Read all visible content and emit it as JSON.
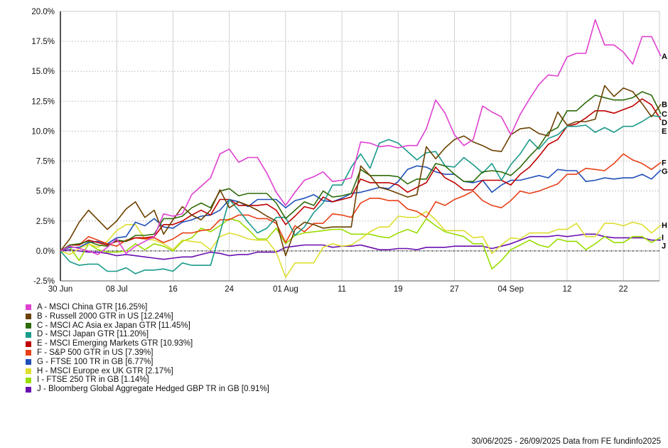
{
  "chart_data": {
    "type": "line",
    "title": "",
    "xlabel": "",
    "ylabel": "",
    "ylim": [
      -2.5,
      20.0
    ],
    "yticks": [
      "20.0%",
      "17.5%",
      "15.0%",
      "12.5%",
      "10.0%",
      "7.5%",
      "5.0%",
      "2.5%",
      "0.0%",
      "-2.5%"
    ],
    "ytick_values": [
      20,
      17.5,
      15,
      12.5,
      10,
      7.5,
      5,
      2.5,
      0,
      -2.5
    ],
    "x_count": 65,
    "xticks": [
      {
        "index": 0,
        "label": "30 Jun"
      },
      {
        "index": 6,
        "label": "08 Jul"
      },
      {
        "index": 12,
        "label": "16"
      },
      {
        "index": 18,
        "label": "24"
      },
      {
        "index": 24,
        "label": "01 Aug"
      },
      {
        "index": 30,
        "label": "11"
      },
      {
        "index": 36,
        "label": "19"
      },
      {
        "index": 42,
        "label": "27"
      },
      {
        "index": 48,
        "label": "04 Sep"
      },
      {
        "index": 54,
        "label": "12"
      },
      {
        "index": 60,
        "label": "22"
      }
    ],
    "grid": true,
    "legend_position": "bottom-left",
    "series": [
      {
        "key": "A",
        "name": "A - MSCI China GTR [16.25%]",
        "color": "#e040d0",
        "values": [
          0,
          0.4,
          0.2,
          0.0,
          -0.3,
          0.3,
          1.0,
          -0.2,
          0.4,
          0.8,
          1.2,
          3.1,
          2.9,
          3.1,
          4.7,
          5.4,
          6.1,
          8.1,
          8.5,
          7.4,
          7.8,
          7.8,
          6.5,
          4.9,
          3.8,
          4.9,
          5.9,
          6.2,
          6.6,
          5.8,
          5.9,
          6.1,
          9.1,
          9.0,
          8.7,
          8.8,
          8.6,
          8.8,
          8.8,
          10.2,
          12.6,
          11.5,
          9.7,
          8.8,
          9.3,
          12.1,
          11.6,
          11.2,
          9.7,
          11.4,
          12.7,
          13.9,
          14.7,
          14.6,
          16.2,
          16.5,
          16.5,
          19.3,
          17.2,
          17.2,
          16.6,
          15.6,
          17.9,
          17.9,
          16.25
        ]
      },
      {
        "key": "B",
        "name": "B - Russell 2000 GTR in US [12.24%]",
        "color": "#6b4000",
        "values": [
          0,
          1.0,
          2.4,
          3.4,
          2.6,
          1.8,
          2.5,
          3.5,
          4.1,
          2.8,
          3.4,
          1.4,
          2.6,
          3.7,
          3.0,
          2.6,
          3.4,
          5.1,
          3.6,
          4.1,
          3.8,
          3.4,
          2.9,
          2.5,
          -0.4,
          1.8,
          2.4,
          2.2,
          1.9,
          2.0,
          2.0,
          2.0,
          7.1,
          6.3,
          5.3,
          5.1,
          4.8,
          4.5,
          4.7,
          8.7,
          7.7,
          8.6,
          9.3,
          9.6,
          9.1,
          8.8,
          8.4,
          8.3,
          9.7,
          10.2,
          10.3,
          9.8,
          9.6,
          11.6,
          10.5,
          10.8,
          10.8,
          11.0,
          13.8,
          12.9,
          13.6,
          13.3,
          12.3,
          11.2,
          12.24
        ]
      },
      {
        "key": "C",
        "name": "C - MSCI AC Asia ex Japan GTR [11.45%]",
        "color": "#2e6b0a",
        "values": [
          0,
          0.5,
          0.6,
          0.8,
          0.5,
          0.4,
          0.9,
          0.8,
          1.3,
          1.3,
          1.4,
          2.7,
          2.7,
          2.9,
          3.6,
          4.0,
          3.6,
          5.0,
          5.2,
          4.6,
          4.8,
          4.8,
          4.8,
          4.0,
          2.7,
          3.4,
          4.1,
          3.8,
          5.0,
          4.5,
          4.6,
          4.8,
          6.8,
          6.3,
          6.3,
          6.3,
          6.2,
          5.6,
          6.0,
          6.0,
          7.3,
          7.1,
          6.4,
          5.8,
          5.8,
          6.6,
          6.7,
          6.6,
          6.3,
          7.0,
          7.9,
          8.7,
          9.9,
          10.3,
          11.7,
          11.7,
          12.4,
          13.0,
          12.8,
          12.6,
          12.6,
          12.8,
          13.3,
          13.0,
          11.45
        ]
      },
      {
        "key": "D",
        "name": "D - MSCI Japan GTR [11.20%]",
        "color": "#1a9a8a",
        "values": [
          0,
          -0.9,
          -1.2,
          -1.1,
          -1.1,
          -1.7,
          -1.7,
          -1.4,
          -1.9,
          -1.6,
          -1.6,
          -1.5,
          -1.7,
          -1.0,
          -1.2,
          -1.2,
          -1.2,
          1.5,
          4.3,
          3.4,
          2.4,
          1.5,
          1.9,
          2.8,
          2.8,
          1.3,
          2.0,
          3.2,
          4.0,
          5.5,
          5.5,
          7.0,
          8.1,
          6.9,
          9.0,
          9.3,
          9.0,
          8.3,
          7.6,
          8.2,
          8.3,
          7.1,
          7.0,
          7.8,
          7.2,
          6.5,
          7.3,
          5.9,
          7.2,
          8.1,
          9.3,
          8.5,
          9.4,
          9.7,
          10.4,
          10.4,
          10.5,
          9.9,
          10.3,
          9.9,
          10.4,
          10.4,
          10.8,
          11.3,
          11.2
        ]
      },
      {
        "key": "E",
        "name": "E - MSCI Emerging Markets GTR [10.93%]",
        "color": "#c00000",
        "values": [
          0,
          0.5,
          0.5,
          0.9,
          0.7,
          0.5,
          0.8,
          0.8,
          1.1,
          1.1,
          1.2,
          2.2,
          2.2,
          2.5,
          3.0,
          3.4,
          3.0,
          4.3,
          4.3,
          3.8,
          3.8,
          3.8,
          3.9,
          3.4,
          2.2,
          2.9,
          3.7,
          3.5,
          4.5,
          4.1,
          4.3,
          4.5,
          6.0,
          5.7,
          5.7,
          5.7,
          5.5,
          4.9,
          5.3,
          5.7,
          7.0,
          6.1,
          5.7,
          5.1,
          5.1,
          5.9,
          5.9,
          5.9,
          5.5,
          6.4,
          7.0,
          7.9,
          8.9,
          9.3,
          10.4,
          10.6,
          11.1,
          11.7,
          11.7,
          11.5,
          11.8,
          12.1,
          12.7,
          12.2,
          10.93
        ]
      },
      {
        "key": "F",
        "name": "F - S&P 500 GTR in US [7.39%]",
        "color": "#e84018",
        "values": [
          0,
          0.5,
          0.5,
          1.2,
          0.9,
          0.6,
          0.4,
          0.9,
          1.1,
          1.0,
          1.1,
          0.7,
          1.0,
          1.5,
          1.5,
          1.7,
          1.8,
          2.6,
          2.6,
          3.0,
          3.0,
          2.7,
          2.7,
          2.3,
          0.7,
          2.1,
          1.6,
          2.3,
          2.3,
          3.1,
          3.0,
          2.8,
          4.0,
          4.4,
          4.4,
          4.2,
          4.2,
          3.5,
          3.3,
          2.8,
          4.1,
          3.8,
          4.3,
          4.6,
          5.0,
          4.2,
          3.8,
          3.6,
          4.2,
          5.0,
          4.8,
          5.0,
          5.3,
          5.6,
          6.4,
          6.4,
          6.9,
          6.8,
          6.7,
          7.3,
          8.1,
          7.6,
          7.3,
          6.8,
          7.39
        ]
      },
      {
        "key": "G",
        "name": "G - FTSE 100 TR in GB [6.77%]",
        "color": "#1f4fb8",
        "values": [
          0,
          0.3,
          0.3,
          0.7,
          0.8,
          0.6,
          1.1,
          1.2,
          2.4,
          2.1,
          2.7,
          2.0,
          1.9,
          2.4,
          2.6,
          2.9,
          3.0,
          3.4,
          4.3,
          4.1,
          3.7,
          4.3,
          4.3,
          4.3,
          3.6,
          4.2,
          4.4,
          4.7,
          4.2,
          4.1,
          4.4,
          4.8,
          4.9,
          5.1,
          5.3,
          5.2,
          5.8,
          6.8,
          7.1,
          7.0,
          6.6,
          6.4,
          6.4,
          5.8,
          5.7,
          5.9,
          4.9,
          5.5,
          5.9,
          5.9,
          6.1,
          6.3,
          6.1,
          6.8,
          6.7,
          6.7,
          5.8,
          5.9,
          6.1,
          6.0,
          6.1,
          6.1,
          6.4,
          6.0,
          6.77
        ]
      },
      {
        "key": "H",
        "name": "H - MSCI Europe ex UK GTR [2.17%]",
        "color": "#dede30",
        "values": [
          0,
          -0.3,
          0.2,
          0.6,
          0.3,
          0.8,
          1.7,
          2.2,
          2.2,
          1.0,
          0.9,
          0.6,
          0.1,
          0.9,
          0.8,
          0.7,
          0.1,
          1.2,
          1.5,
          1.3,
          1.0,
          0.9,
          0.9,
          -0.1,
          -2.2,
          -1.0,
          -1.0,
          -1.0,
          0.3,
          0.6,
          0.4,
          0.5,
          1.0,
          1.6,
          2.0,
          2.0,
          2.9,
          2.8,
          2.8,
          3.3,
          2.6,
          1.7,
          1.7,
          1.7,
          1.1,
          1.2,
          -0.2,
          0.5,
          1.1,
          1.0,
          1.5,
          1.5,
          1.5,
          1.8,
          1.8,
          2.3,
          1.2,
          1.2,
          2.3,
          2.3,
          2.1,
          2.4,
          2.2,
          1.5,
          2.17
        ]
      },
      {
        "key": "I",
        "name": "I - FTSE 250 TR in GB [1.14%]",
        "color": "#99dd00",
        "values": [
          0,
          0.3,
          -0.8,
          0.6,
          0.1,
          -0.1,
          -0.1,
          0.0,
          0.6,
          0.1,
          0.6,
          0.4,
          0.0,
          0.8,
          1.1,
          1.9,
          1.6,
          2.1,
          2.7,
          2.5,
          1.8,
          1.0,
          1.0,
          1.9,
          0.6,
          1.3,
          1.5,
          1.6,
          1.7,
          1.8,
          1.8,
          1.4,
          1.4,
          1.4,
          1.2,
          1.1,
          1.5,
          1.8,
          1.5,
          2.7,
          2.1,
          1.6,
          1.4,
          1.2,
          0.6,
          0.6,
          -1.5,
          -0.8,
          0.1,
          0.5,
          0.9,
          0.5,
          0.3,
          1.0,
          0.8,
          0.8,
          0.1,
          0.6,
          1.2,
          0.7,
          0.7,
          1.2,
          1.2,
          0.7,
          1.14
        ]
      },
      {
        "key": "J",
        "name": "J - Bloomberg Global Aggregate Hedged GBP TR in GB [0.91%]",
        "color": "#6a0fb0",
        "values": [
          0,
          0.1,
          0.0,
          -0.1,
          -0.1,
          -0.2,
          -0.4,
          -0.3,
          -0.4,
          -0.5,
          -0.6,
          -0.7,
          -0.6,
          -0.5,
          -0.5,
          -0.3,
          -0.1,
          -0.2,
          -0.4,
          -0.3,
          -0.3,
          -0.1,
          -0.1,
          -0.1,
          0.3,
          0.4,
          0.5,
          0.5,
          0.5,
          0.3,
          0.4,
          0.4,
          0.5,
          0.3,
          0.1,
          0.1,
          0.2,
          0.2,
          0.1,
          0.3,
          0.3,
          0.3,
          0.4,
          0.4,
          0.4,
          0.4,
          0.2,
          0.4,
          0.6,
          0.9,
          1.2,
          1.2,
          1.2,
          1.3,
          1.2,
          1.3,
          1.4,
          1.4,
          1.2,
          1.1,
          1.1,
          1.1,
          1.1,
          0.9,
          0.91
        ]
      }
    ],
    "end_labels": [
      "A",
      "B",
      "C",
      "D",
      "E",
      "F",
      "G",
      "H",
      "I",
      "J"
    ]
  },
  "footer": "30/06/2025 - 26/09/2025 Data from FE fundinfo2025"
}
